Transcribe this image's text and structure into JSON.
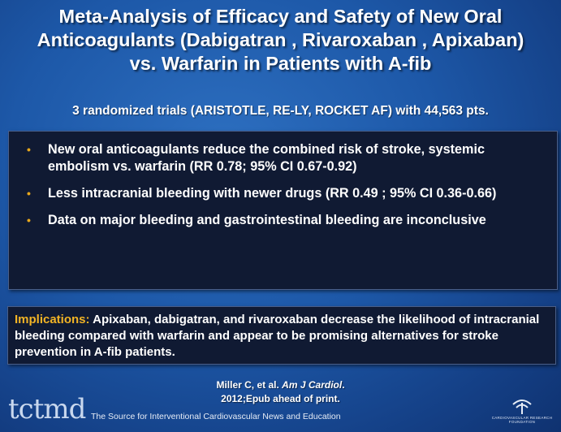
{
  "title_lines": [
    "Meta-Analysis of Efficacy and Safety of New Oral",
    "Anticoagulants (Dabigatran , Rivaroxaban , Apixaban)",
    "vs. Warfarin in Patients with A-fib"
  ],
  "subtitle": "3 randomized trials (ARISTOTLE, RE-LY, ROCKET AF) with 44,563 pts.",
  "bullet_glyph": "•",
  "findings": [
    "New oral anticoagulants reduce the combined risk of stroke, systemic embolism vs. warfarin (RR 0.78; 95% CI 0.67-0.92)",
    "Less intracranial bleeding with newer drugs (RR 0.49 ; 95% CI 0.36-0.66)",
    "Data on major bleeding and gastrointestinal bleeding are inconclusive"
  ],
  "implications": {
    "label": "Implications:",
    "text": " Apixaban, dabigatran, and rivaroxaban decrease the likelihood of intracranial bleeding compared with warfarin and appear to be promising alternatives for stroke prevention in A-fib patients."
  },
  "citation": {
    "authors": "Miller C, et al.",
    "journal": "Am J Cardiol",
    "journal_suffix": ".",
    "line2": "2012;Epub ahead of print."
  },
  "brand": {
    "logo_text": "tctmd",
    "tagline": "The Source for Interventional Cardiovascular News and Education"
  },
  "foundation": {
    "name_line1": "CARDIOVASCULAR RESEARCH",
    "name_line2": "FOUNDATION",
    "icon": "crf-logo-icon"
  },
  "colors": {
    "background": "#1d58a8",
    "box": "#101a33",
    "accent": "#f2b425"
  }
}
